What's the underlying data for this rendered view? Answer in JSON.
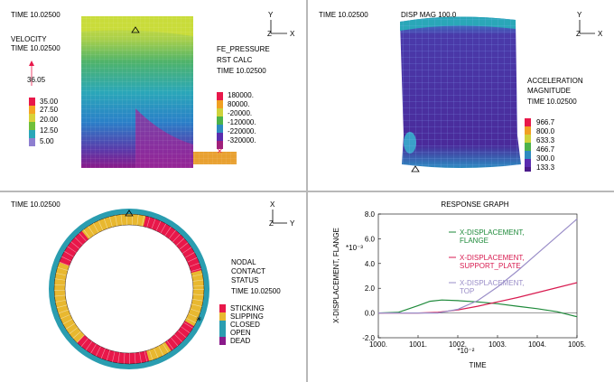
{
  "p1": {
    "time": "TIME 10.02500",
    "velocity_title": "VELOCITY",
    "velocity_time": "TIME 10.02500",
    "vector_value": "36.05",
    "velocity_legend": [
      "35.00",
      "27.50",
      "20.00",
      "12.50",
      "5.00"
    ],
    "velocity_colors": [
      "#e8184a",
      "#f5a623",
      "#d9d23a",
      "#6fbf3a",
      "#2aa7b8",
      "#8e7fd0"
    ],
    "pressure_title": "FE_PRESSURE",
    "pressure_sub": "RST CALC",
    "pressure_time": "TIME 10.02500",
    "pressure_legend": [
      "180000.",
      "80000.",
      "-20000.",
      "-120000.",
      "-220000.",
      "-320000."
    ],
    "pressure_colors": [
      "#e8184a",
      "#f0a022",
      "#cfd23a",
      "#4cb24a",
      "#2d8bc0",
      "#5a2cae",
      "#a0207a"
    ]
  },
  "p2": {
    "time": "TIME 10.02500",
    "disp_mag": "DISP MAG 100.0",
    "accel_title": "ACCELERATION",
    "accel_sub": "MAGNITUDE",
    "accel_time": "TIME 10.02500",
    "accel_legend": [
      "966.7",
      "800.0",
      "633.3",
      "466.7",
      "300.0",
      "133.3"
    ],
    "accel_colors": [
      "#e8184a",
      "#f0a022",
      "#cfd23a",
      "#4cb24a",
      "#2d8bc0",
      "#5a2cae",
      "#4a1a8a"
    ]
  },
  "p3": {
    "time": "TIME 10.02500",
    "contact_title": [
      "NODAL",
      "CONTACT",
      "STATUS"
    ],
    "contact_time": "TIME 10.02500",
    "contact_legend": [
      "STICKING",
      "SLIPPING",
      "CLOSED",
      "OPEN",
      "DEAD"
    ],
    "contact_colors": [
      "#e8184a",
      "#e8b830",
      "#2a9db0",
      "#2a9db0",
      "#8a1a8a"
    ]
  },
  "triad": {
    "y": "Y",
    "z": "Z",
    "x": "X"
  },
  "triad_p3": {
    "x": "X",
    "z": "Z",
    "y": "Y"
  },
  "chart_data": {
    "type": "line",
    "title": "RESPONSE GRAPH",
    "xlabel": "TIME",
    "ylabel": "X-DISPLACEMENT, FLANGE",
    "x_multiplier": "*10⁻²",
    "y_multiplier": "*10⁻³",
    "xlim": [
      1000,
      1005
    ],
    "ylim": [
      -2,
      8
    ],
    "xticks": [
      "1000.",
      "1001.",
      "1002.",
      "1003.",
      "1004.",
      "1005."
    ],
    "yticks": [
      "-2.0",
      "0.0",
      "2.0",
      "4.0",
      "6.0",
      "8.0"
    ],
    "series": [
      {
        "name": "X-DISPLACEMENT, FLANGE",
        "color": "#1e8a3a",
        "x": [
          1000,
          1000.5,
          1001,
          1001.3,
          1001.6,
          1002,
          1002.5,
          1003,
          1003.5,
          1004,
          1004.5,
          1005
        ],
        "y": [
          0,
          0.05,
          0.6,
          0.95,
          1.05,
          1.0,
          0.9,
          0.75,
          0.55,
          0.35,
          0.1,
          -0.3
        ]
      },
      {
        "name": "X-DISPLACEMENT, SUPPORT_PLATE",
        "color": "#d81b50",
        "x": [
          1000,
          1001,
          1001.5,
          1002,
          1002.5,
          1003,
          1003.5,
          1004,
          1004.5,
          1005
        ],
        "y": [
          0,
          0,
          0.05,
          0.25,
          0.55,
          0.9,
          1.25,
          1.65,
          2.05,
          2.45
        ]
      },
      {
        "name": "X-DISPLACEMENT, TOP",
        "color": "#9a8ec8",
        "x": [
          1000,
          1001,
          1001.5,
          1002,
          1002.5,
          1003,
          1003.5,
          1004,
          1004.5,
          1005
        ],
        "y": [
          0,
          0,
          0,
          0.3,
          1.0,
          2.1,
          3.4,
          4.8,
          6.2,
          7.6
        ]
      }
    ],
    "legend_position": "center-right",
    "grid": false
  }
}
